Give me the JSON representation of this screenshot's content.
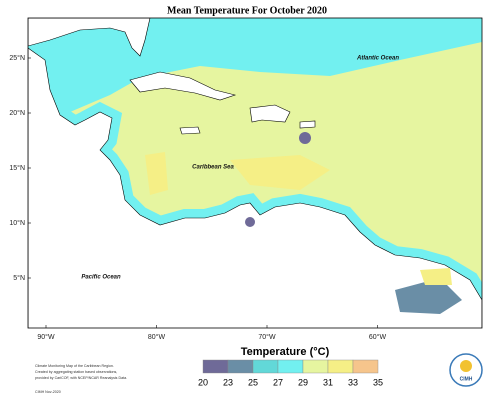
{
  "title": "Mean Temperature For October 2020",
  "lat_labels": [
    "25°N",
    "20°N",
    "15°N",
    "10°N",
    "5°N"
  ],
  "lon_labels": [
    "90°W",
    "80°W",
    "70°W",
    "60°W"
  ],
  "places": [
    "Atlantic Ocean",
    "Caribbean Sea",
    "Pacific Ocean"
  ],
  "legend": {
    "title": "Temperature (°C)",
    "ticks": [
      20,
      23,
      25,
      27,
      29,
      31,
      33,
      35
    ],
    "colors": [
      "#6f6a98",
      "#6a8ea6",
      "#62d8d8",
      "#72f0f0",
      "#e6f5a0",
      "#f5ef86",
      "#f6c58c"
    ]
  },
  "footer": [
    "Climate Monitoring Map of the Caribbean Region.",
    "Created by aggregating station based observations,",
    "provided by CariCOF, with NCEP/NCAR Reanalysis Data.",
    "CIMH Nov-2020"
  ],
  "logo": "CIMH"
}
